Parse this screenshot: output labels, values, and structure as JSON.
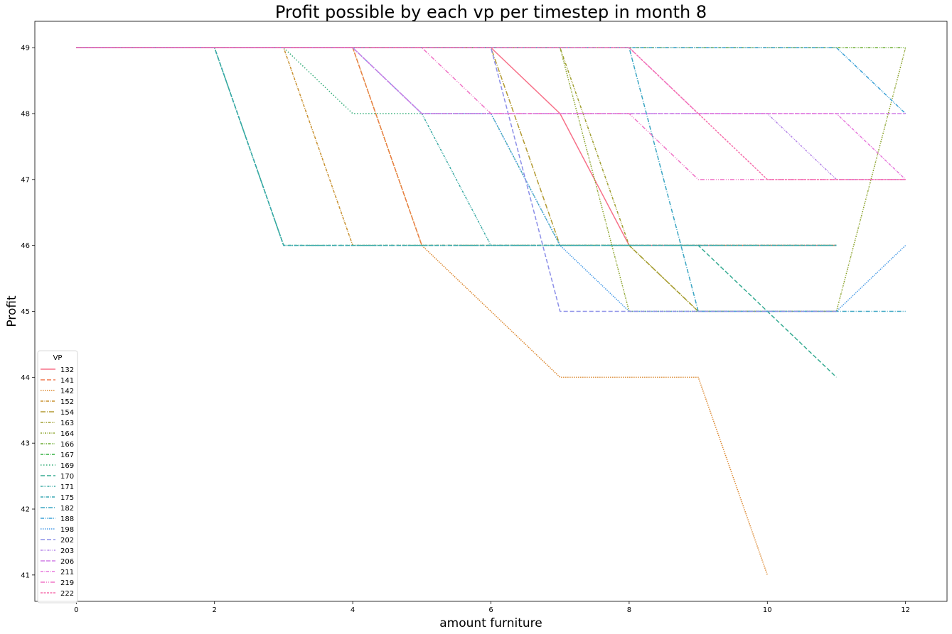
{
  "chart_data": {
    "type": "line",
    "title": "Profit possible by each vp per timestep in month 8",
    "xlabel": "amount furniture",
    "ylabel": "Profit",
    "xlim": [
      -0.6,
      12.6
    ],
    "ylim": [
      40.6,
      49.4
    ],
    "xticks": [
      0,
      2,
      4,
      6,
      8,
      10,
      12
    ],
    "yticks": [
      41,
      42,
      43,
      44,
      45,
      46,
      47,
      48,
      49
    ],
    "grid": false,
    "legend": {
      "title": "VP",
      "placement": "lower-left"
    },
    "series": [
      {
        "name": "132",
        "color": "#f77189",
        "dash": "",
        "x": [
          0,
          1,
          2,
          3,
          4,
          5,
          6,
          7,
          8,
          9,
          10,
          11
        ],
        "y": [
          49,
          49,
          49,
          49,
          49,
          49,
          49,
          48,
          46,
          46,
          46,
          46
        ]
      },
      {
        "name": "141",
        "color": "#f0784f",
        "dash": "6,3",
        "x": [
          0,
          1,
          2,
          3,
          4,
          5,
          6,
          7,
          8,
          9,
          10,
          11
        ],
        "y": [
          49,
          49,
          49,
          49,
          49,
          46,
          46,
          46,
          46,
          46,
          46,
          46
        ]
      },
      {
        "name": "142",
        "color": "#dc8932",
        "dash": "1.5,1.5",
        "x": [
          0,
          1,
          2,
          3,
          4,
          5,
          6,
          7,
          8,
          9,
          10
        ],
        "y": [
          49,
          49,
          49,
          49,
          49,
          46,
          45,
          44,
          44,
          44,
          41
        ]
      },
      {
        "name": "152",
        "color": "#c8902f",
        "dash": "4,1.5,1,1.5",
        "x": [
          0,
          1,
          2,
          3,
          4,
          5,
          6,
          7,
          8,
          9,
          10,
          11
        ],
        "y": [
          49,
          49,
          49,
          49,
          46,
          46,
          46,
          46,
          46,
          46,
          46,
          46
        ]
      },
      {
        "name": "154",
        "color": "#b39a32",
        "dash": "7,2,1,2",
        "x": [
          0,
          1,
          2,
          3,
          4,
          5,
          6,
          7,
          8,
          9,
          10,
          11
        ],
        "y": [
          49,
          49,
          49,
          49,
          49,
          49,
          49,
          46,
          46,
          45,
          45,
          45
        ]
      },
      {
        "name": "163",
        "color": "#a09f31",
        "dash": "4,1.5,1,1.5,1,1.5",
        "x": [
          0,
          1,
          2,
          3,
          4,
          5,
          6,
          7,
          8,
          9,
          10,
          11
        ],
        "y": [
          49,
          49,
          49,
          49,
          49,
          49,
          49,
          49,
          46,
          45,
          45,
          45
        ]
      },
      {
        "name": "164",
        "color": "#8ea531",
        "dash": "2,1.5,1,1.5",
        "x": [
          0,
          1,
          2,
          3,
          4,
          5,
          6,
          7,
          8,
          9,
          10,
          11,
          12
        ],
        "y": [
          49,
          49,
          49,
          49,
          49,
          49,
          49,
          49,
          45,
          45,
          45,
          45,
          49
        ]
      },
      {
        "name": "166",
        "color": "#6bac31",
        "dash": "4,1.5,1,1.5,1,1.5",
        "x": [
          0,
          1,
          2,
          3,
          4,
          5,
          6,
          7,
          8,
          9,
          10,
          11,
          12
        ],
        "y": [
          49,
          49,
          49,
          49,
          49,
          49,
          49,
          49,
          49,
          49,
          49,
          49,
          49
        ]
      },
      {
        "name": "167",
        "color": "#33b040",
        "dash": "4,1.5,1,1.5",
        "x": [
          0,
          1,
          2,
          3,
          4,
          5,
          6,
          7,
          8,
          9,
          10,
          11
        ],
        "y": [
          49,
          49,
          49,
          46,
          46,
          46,
          46,
          46,
          46,
          46,
          46,
          46
        ]
      },
      {
        "name": "169",
        "color": "#35ad79",
        "dash": "1.5,2.5",
        "x": [
          0,
          1,
          2,
          3,
          4,
          5,
          6,
          7,
          8,
          9,
          10,
          11
        ],
        "y": [
          49,
          49,
          49,
          49,
          48,
          48,
          48,
          46,
          46,
          46,
          46,
          46
        ]
      },
      {
        "name": "170",
        "color": "#36ab92",
        "dash": "6,3",
        "x": [
          0,
          1,
          2,
          3,
          4,
          5,
          6,
          7,
          8,
          9,
          10,
          11
        ],
        "y": [
          49,
          49,
          49,
          46,
          46,
          46,
          46,
          46,
          46,
          46,
          45,
          44
        ]
      },
      {
        "name": "171",
        "color": "#37a9a3",
        "dash": "3,1.5,1,1.5,1,1.5",
        "x": [
          0,
          1,
          2,
          3,
          4,
          5,
          6,
          7,
          8,
          9,
          10,
          11
        ],
        "y": [
          49,
          49,
          49,
          49,
          49,
          48,
          46,
          46,
          46,
          46,
          46,
          46
        ]
      },
      {
        "name": "175",
        "color": "#38a7b3",
        "dash": "4,1.5,1,1.5",
        "x": [
          0,
          1,
          2,
          3,
          4,
          5,
          6,
          7,
          8,
          9,
          10,
          11
        ],
        "y": [
          49,
          49,
          49,
          46,
          46,
          46,
          46,
          46,
          46,
          46,
          46,
          46
        ]
      },
      {
        "name": "182",
        "color": "#3aa5c3",
        "dash": "6,2,1,2",
        "x": [
          0,
          1,
          2,
          3,
          4,
          5,
          6,
          7,
          8,
          9,
          10,
          11,
          12
        ],
        "y": [
          49,
          49,
          49,
          49,
          49,
          49,
          49,
          49,
          49,
          45,
          45,
          45,
          45
        ]
      },
      {
        "name": "188",
        "color": "#3ca1d7",
        "dash": "5,1.5,1,1.5,1,1.5",
        "x": [
          0,
          1,
          2,
          3,
          4,
          5,
          6,
          7,
          8,
          9,
          10,
          11,
          12
        ],
        "y": [
          49,
          49,
          49,
          49,
          49,
          49,
          49,
          49,
          49,
          49,
          49,
          49,
          48
        ]
      },
      {
        "name": "198",
        "color": "#4a9ce7",
        "dash": "1.5,1.5",
        "x": [
          0,
          1,
          2,
          3,
          4,
          5,
          6,
          7,
          8,
          9,
          10,
          11,
          12
        ],
        "y": [
          49,
          49,
          49,
          49,
          49,
          48,
          48,
          46,
          45,
          45,
          45,
          45,
          46
        ]
      },
      {
        "name": "202",
        "color": "#8c8fe8",
        "dash": "6,3",
        "x": [
          0,
          1,
          2,
          3,
          4,
          5,
          6,
          7,
          8,
          9,
          10,
          11
        ],
        "y": [
          49,
          49,
          49,
          49,
          49,
          49,
          49,
          45,
          45,
          45,
          45,
          45
        ]
      },
      {
        "name": "203",
        "color": "#b586e8",
        "dash": "3,1.5,1,1.5,1,1.5",
        "x": [
          0,
          1,
          2,
          3,
          4,
          5,
          6,
          7,
          8,
          9,
          10,
          11,
          12
        ],
        "y": [
          49,
          49,
          49,
          49,
          49,
          48,
          48,
          48,
          48,
          48,
          48,
          47,
          47
        ]
      },
      {
        "name": "206",
        "color": "#d07ee6",
        "dash": "6,2",
        "x": [
          0,
          1,
          2,
          3,
          4,
          5,
          6,
          7,
          8,
          9,
          10,
          11,
          12
        ],
        "y": [
          49,
          49,
          49,
          49,
          49,
          48,
          48,
          48,
          48,
          48,
          48,
          48,
          48
        ]
      },
      {
        "name": "211",
        "color": "#e779dc",
        "dash": "4,1.5,1,1.5",
        "x": [
          0,
          1,
          2,
          3,
          4,
          5,
          6,
          7,
          8,
          9,
          10,
          11,
          12
        ],
        "y": [
          49,
          49,
          49,
          49,
          49,
          49,
          49,
          49,
          49,
          48,
          48,
          48,
          47
        ]
      },
      {
        "name": "219",
        "color": "#f074c6",
        "dash": "6,2,1,2,1,2",
        "x": [
          0,
          1,
          2,
          3,
          4,
          5,
          6,
          7,
          8,
          9,
          10,
          11,
          12
        ],
        "y": [
          49,
          49,
          49,
          49,
          49,
          49,
          48,
          48,
          48,
          47,
          47,
          47,
          47
        ]
      },
      {
        "name": "222",
        "color": "#f56fab",
        "dash": "3,1.5",
        "x": [
          0,
          1,
          2,
          3,
          4,
          5,
          6,
          7,
          8,
          9,
          10,
          11,
          12
        ],
        "y": [
          49,
          49,
          49,
          49,
          49,
          49,
          49,
          49,
          49,
          48,
          47,
          47,
          47
        ]
      }
    ]
  }
}
